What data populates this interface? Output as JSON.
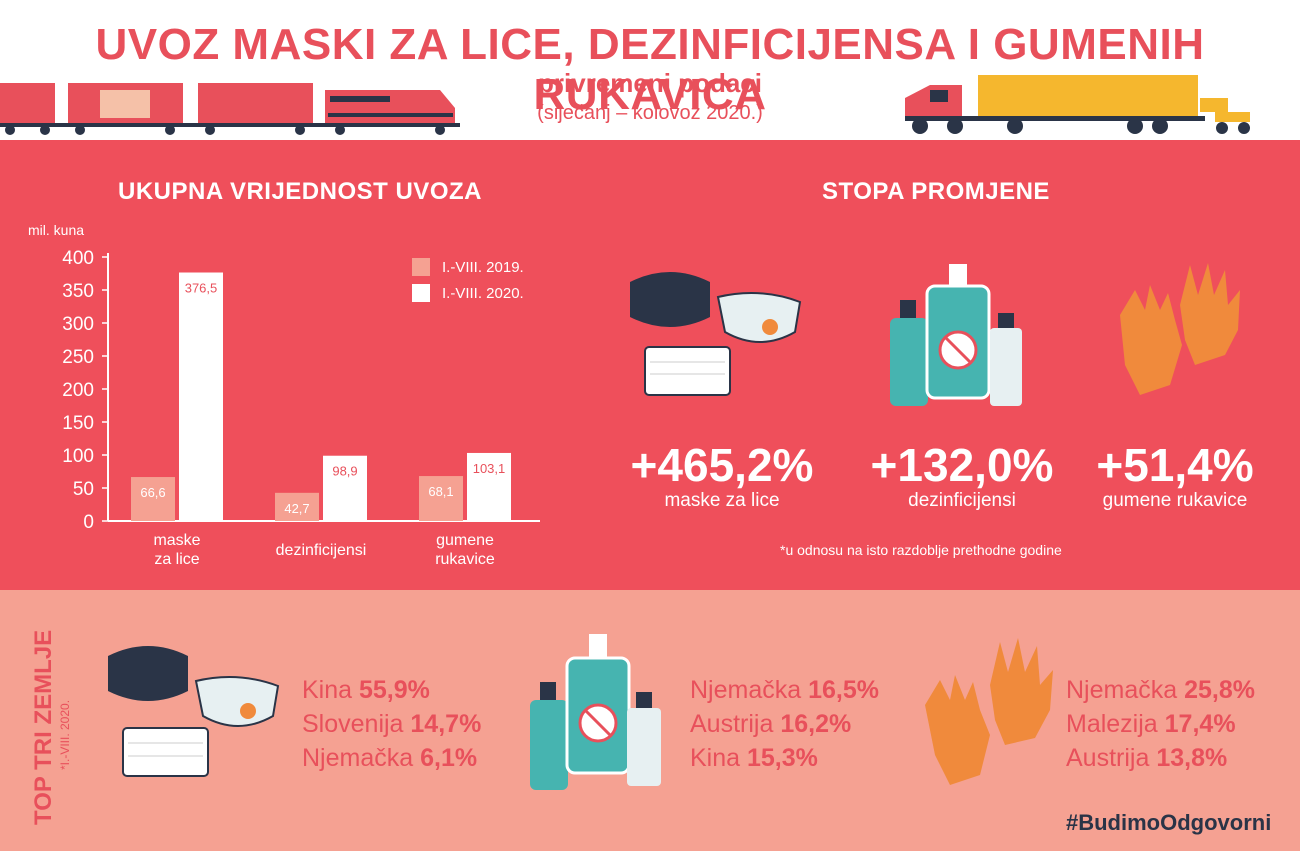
{
  "header": {
    "title": "UVOZ MASKI ZA LICE, DEZINFICIJENSA I GUMENIH RUKAVICA",
    "subtitle": "privremeni podaci",
    "period": "(siječanj – kolovoz 2020.)"
  },
  "value_section": {
    "title": "UKUPNA VRIJEDNOST UVOZA",
    "unit": "mil. kuna"
  },
  "chart_data": {
    "type": "bar",
    "categories": [
      "maske za lice",
      "dezinficijensi",
      "gumene rukavice"
    ],
    "category_lines": [
      [
        "maske",
        "za lice"
      ],
      [
        "dezinficijensi"
      ],
      [
        "gumene",
        "rukavice"
      ]
    ],
    "series": [
      {
        "name": "I.-VIII. 2019.",
        "values": [
          66.6,
          42.7,
          68.1
        ],
        "labels": [
          "66,6",
          "42,7",
          "68,1"
        ],
        "color": "#f5a192"
      },
      {
        "name": "I.-VIII. 2020.",
        "values": [
          376.5,
          98.9,
          103.1
        ],
        "labels": [
          "376,5",
          "98,9",
          "103,1"
        ],
        "color": "#ffffff"
      }
    ],
    "yticks": [
      "0",
      "50",
      "100",
      "150",
      "200",
      "250",
      "300",
      "350",
      "400"
    ],
    "ylim": [
      0,
      400
    ],
    "ylabel": "mil. kuna",
    "legend": "top-right"
  },
  "rate_section": {
    "title": "STOPA PROMJENE",
    "items": [
      {
        "value": "+465,2%",
        "label": "maske za lice"
      },
      {
        "value": "+132,0%",
        "label": "dezinficijensi"
      },
      {
        "value": "+51,4%",
        "label": "gumene rukavice"
      }
    ],
    "footnote": "*u odnosu na isto razdoblje prethodne godine"
  },
  "top_section": {
    "title": "TOP TRI ZEMLJE",
    "note": "*I.-VIII. 2020.",
    "groups": [
      {
        "items": [
          {
            "country": "Kina",
            "pct": "55,9%"
          },
          {
            "country": "Slovenija",
            "pct": "14,7%"
          },
          {
            "country": "Njemačka",
            "pct": "6,1%"
          }
        ]
      },
      {
        "items": [
          {
            "country": "Njemačka",
            "pct": "16,5%"
          },
          {
            "country": "Austrija",
            "pct": "16,2%"
          },
          {
            "country": "Kina",
            "pct": "15,3%"
          }
        ]
      },
      {
        "items": [
          {
            "country": "Njemačka",
            "pct": "25,8%"
          },
          {
            "country": "Malezija",
            "pct": "17,4%"
          },
          {
            "country": "Austrija",
            "pct": "13,8%"
          }
        ]
      }
    ]
  },
  "footer": {
    "hashtag": "#BudimoOdgovorni"
  },
  "icons": [
    "train-icon",
    "truck-icon",
    "face-mask-icon",
    "sanitizer-bottles-icon",
    "rubber-gloves-icon"
  ],
  "colors": {
    "accent": "#ef4f5b",
    "title": "#e8505b",
    "light": "#f5a192",
    "dark": "#2a3447",
    "teal": "#46b4b0",
    "glove": "#f08a3c"
  }
}
